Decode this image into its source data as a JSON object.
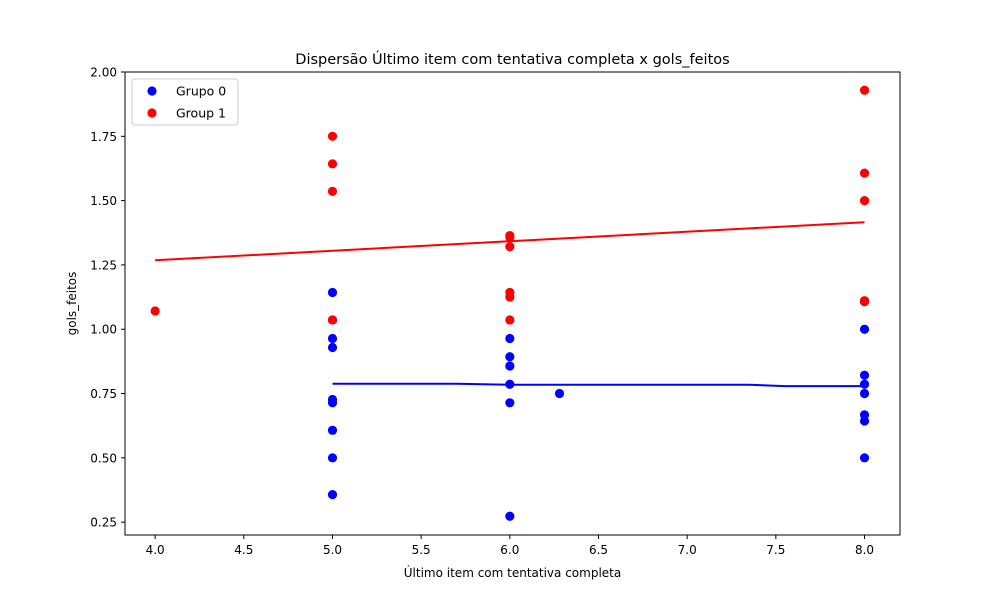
{
  "chart_data": {
    "type": "scatter",
    "title": "Dispersão Último item com tentativa completa x gols_feitos",
    "xlabel": "Último item com tentativa completa",
    "ylabel": "gols_feitos",
    "xlim": [
      3.83,
      8.2
    ],
    "ylim": [
      0.2,
      2.0
    ],
    "xticks": [
      4.0,
      4.5,
      5.0,
      5.5,
      6.0,
      6.5,
      7.0,
      7.5,
      8.0
    ],
    "xtick_labels": [
      "4.0",
      "4.5",
      "5.0",
      "5.5",
      "6.0",
      "6.5",
      "7.0",
      "7.5",
      "8.0"
    ],
    "yticks": [
      0.25,
      0.5,
      0.75,
      1.0,
      1.25,
      1.5,
      1.75,
      2.0
    ],
    "ytick_labels": [
      "0.25",
      "0.50",
      "0.75",
      "1.00",
      "1.25",
      "1.50",
      "1.75",
      "2.00"
    ],
    "legend_position": "top-left",
    "series": [
      {
        "name": "Grupo 0",
        "color": "#0000ff",
        "points": [
          [
            5,
            1.143
          ],
          [
            5,
            1.036
          ],
          [
            5,
            0.964
          ],
          [
            5,
            0.929
          ],
          [
            5,
            0.727
          ],
          [
            5,
            0.714
          ],
          [
            5,
            0.607
          ],
          [
            5,
            0.5
          ],
          [
            5,
            0.357
          ],
          [
            6,
            0.964
          ],
          [
            6,
            0.893
          ],
          [
            6,
            0.857
          ],
          [
            6,
            0.786
          ],
          [
            6,
            0.714
          ],
          [
            6,
            0.273
          ],
          [
            6.28,
            0.75
          ],
          [
            8,
            1.0
          ],
          [
            8,
            0.821
          ],
          [
            8,
            0.786
          ],
          [
            8,
            0.75
          ],
          [
            8,
            0.667
          ],
          [
            8,
            0.643
          ],
          [
            8,
            0.5
          ]
        ],
        "trend": [
          [
            5.0,
            0.788
          ],
          [
            5.7,
            0.788
          ],
          [
            6.0,
            0.784
          ],
          [
            7.35,
            0.784
          ],
          [
            7.55,
            0.779
          ],
          [
            8.0,
            0.779
          ]
        ]
      },
      {
        "name": "Group 1",
        "color": "#ff0000",
        "points": [
          [
            4,
            1.071
          ],
          [
            5,
            1.75
          ],
          [
            5,
            1.643
          ],
          [
            5,
            1.536
          ],
          [
            5,
            1.036
          ],
          [
            6,
            1.364
          ],
          [
            6,
            1.357
          ],
          [
            6,
            1.321
          ],
          [
            6,
            1.143
          ],
          [
            6,
            1.125
          ],
          [
            6,
            1.036
          ],
          [
            8,
            1.929
          ],
          [
            8,
            1.607
          ],
          [
            8,
            1.5
          ],
          [
            8,
            1.111
          ],
          [
            8,
            1.107
          ]
        ],
        "trend": [
          [
            4.0,
            1.268
          ],
          [
            8.0,
            1.416
          ]
        ]
      }
    ]
  }
}
